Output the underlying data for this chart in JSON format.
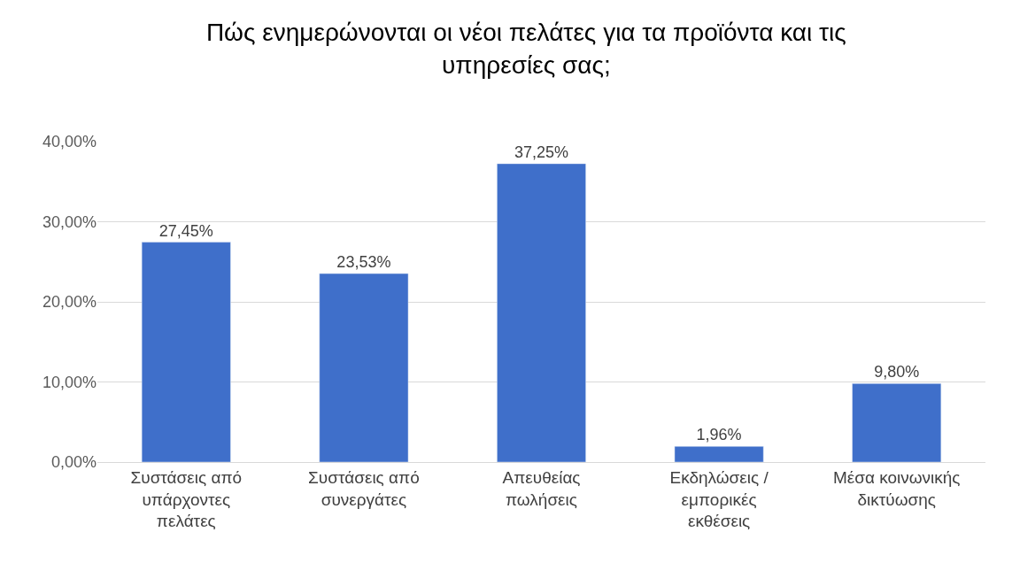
{
  "chart_data": {
    "type": "bar",
    "title": "Πώς ενημερώνονται οι νέοι πελάτες για τα προϊόντα και τις υπηρεσίες σας;",
    "categories": [
      "Συστάσεις από υπάρχοντες πελάτες",
      "Συστάσεις από συνεργάτες",
      "Απευθείας πωλήσεις",
      "Εκδηλώσεις / εμπορικές εκθέσεις",
      "Μέσα κοινωνικής δικτύωσης"
    ],
    "values": [
      27.45,
      23.53,
      37.25,
      1.96,
      9.8
    ],
    "value_labels": [
      "27,45%",
      "23,53%",
      "37,25%",
      "1,96%",
      "9,80%"
    ],
    "color": "#3f6fca",
    "ylim": [
      0,
      40
    ],
    "yticks": [
      {
        "value": 0,
        "label": "0,00%"
      },
      {
        "value": 10,
        "label": "10,00%"
      },
      {
        "value": 20,
        "label": "20,00%"
      },
      {
        "value": 30,
        "label": "30,00%"
      },
      {
        "value": 40,
        "label": "40,00%"
      }
    ],
    "grid": "y",
    "legend": false
  }
}
